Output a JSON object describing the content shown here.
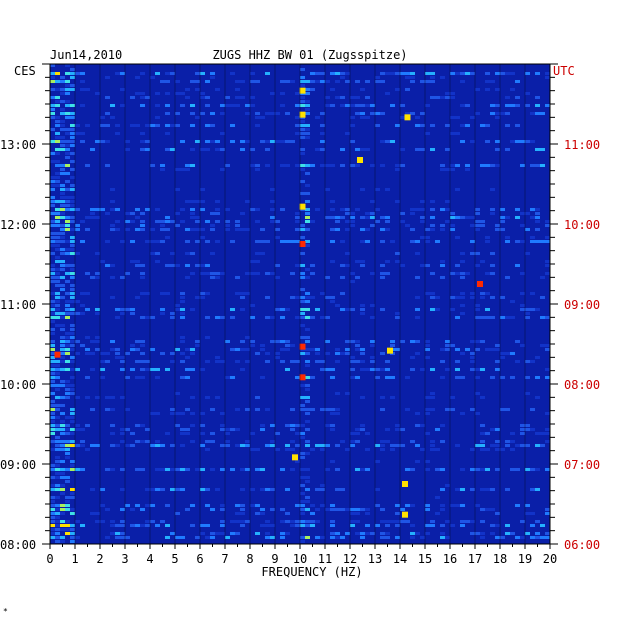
{
  "header": {
    "date": "Jun14,2010",
    "station": "ZUGS HHZ BW 01 (Zugsspitze)"
  },
  "left_axis_title": "CES",
  "right_axis_title": "UTC",
  "footer_mark": "*",
  "colors": {
    "left_labels": "#000000",
    "right_labels": "#cc0000",
    "background_low": "#0a1fa8",
    "mid": "#1f7bff",
    "high": "#ffe100",
    "peak": "#ff2a00"
  },
  "chart_data": {
    "type": "heatmap",
    "title": "ZUGS HHZ BW 01 (Zugsspitze)",
    "date": "Jun14,2010",
    "xlabel": "FREQUENCY (HZ)",
    "xlim": [
      0,
      20
    ],
    "x_ticks": [
      "0",
      "1",
      "2",
      "3",
      "4",
      "5",
      "6",
      "7",
      "8",
      "9",
      "10",
      "11",
      "12",
      "13",
      "14",
      "15",
      "16",
      "17",
      "18",
      "19",
      "20"
    ],
    "y_left_label": "CES",
    "y_right_label": "UTC",
    "y_left_ticks": [
      "13:00",
      "12:00",
      "11:00",
      "10:00",
      "09:00",
      "08:00"
    ],
    "y_right_ticks": [
      "11:00",
      "10:00",
      "09:00",
      "08:00",
      "07:00",
      "06:00"
    ],
    "time_range_ces": [
      "08:00",
      "14:00"
    ],
    "grid": true,
    "hotspots": [
      {
        "freq": 10.1,
        "time_ces": "13:40",
        "level": "high"
      },
      {
        "freq": 10.1,
        "time_ces": "13:22",
        "level": "high"
      },
      {
        "freq": 14.3,
        "time_ces": "13:20",
        "level": "high"
      },
      {
        "freq": 12.4,
        "time_ces": "12:48",
        "level": "high"
      },
      {
        "freq": 10.1,
        "time_ces": "12:13",
        "level": "high"
      },
      {
        "freq": 10.1,
        "time_ces": "11:45",
        "level": "peak"
      },
      {
        "freq": 17.2,
        "time_ces": "11:15",
        "level": "peak"
      },
      {
        "freq": 10.1,
        "time_ces": "10:28",
        "level": "peak"
      },
      {
        "freq": 0.3,
        "time_ces": "10:22",
        "level": "peak"
      },
      {
        "freq": 10.1,
        "time_ces": "10:05",
        "level": "peak"
      },
      {
        "freq": 13.6,
        "time_ces": "10:25",
        "level": "high"
      },
      {
        "freq": 9.8,
        "time_ces": "09:05",
        "level": "high"
      },
      {
        "freq": 14.2,
        "time_ces": "08:45",
        "level": "high"
      },
      {
        "freq": 14.2,
        "time_ces": "08:22",
        "level": "high"
      }
    ]
  }
}
